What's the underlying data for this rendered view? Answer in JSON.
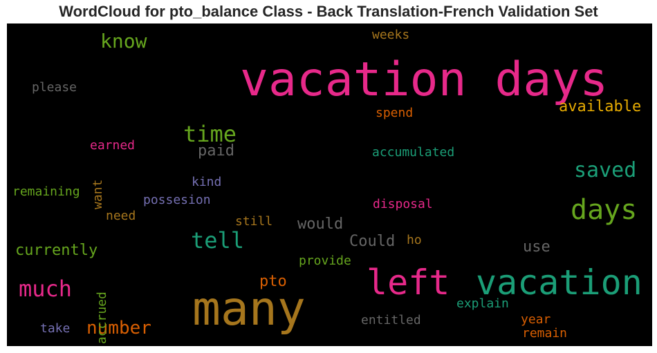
{
  "chart_data": {
    "type": "wordcloud",
    "title": "WordCloud for pto_balance Class - Back Translation-French Validation Set",
    "background": "#000000",
    "words": [
      {
        "text": "vacation days",
        "color": "#e7298a"
      },
      {
        "text": "many",
        "color": "#a6761d"
      },
      {
        "text": "left",
        "color": "#e7298a"
      },
      {
        "text": "vacation",
        "color": "#1b9e77"
      },
      {
        "text": "days",
        "color": "#66a61e"
      },
      {
        "text": "saved",
        "color": "#1b9e77"
      },
      {
        "text": "time",
        "color": "#66a61e"
      },
      {
        "text": "tell",
        "color": "#1b9e77"
      },
      {
        "text": "much",
        "color": "#e7298a"
      },
      {
        "text": "know",
        "color": "#66a61e"
      },
      {
        "text": "number",
        "color": "#d95f02"
      },
      {
        "text": "available",
        "color": "#e6ab02"
      },
      {
        "text": "paid",
        "color": "#666666"
      },
      {
        "text": "currently",
        "color": "#66a61e"
      },
      {
        "text": "would",
        "color": "#666666"
      },
      {
        "text": "Could",
        "color": "#666666"
      },
      {
        "text": "use",
        "color": "#666666"
      },
      {
        "text": "pto",
        "color": "#d95f02"
      },
      {
        "text": "accumulated",
        "color": "#1b9e77"
      },
      {
        "text": "please",
        "color": "#666666"
      },
      {
        "text": "weeks",
        "color": "#a6761d"
      },
      {
        "text": "spend",
        "color": "#d95f02"
      },
      {
        "text": "earned",
        "color": "#e7298a"
      },
      {
        "text": "want",
        "color": "#a6761d"
      },
      {
        "text": "remaining",
        "color": "#66a61e"
      },
      {
        "text": "kind",
        "color": "#7570b3"
      },
      {
        "text": "possesion",
        "color": "#7570b3"
      },
      {
        "text": "disposal",
        "color": "#e7298a"
      },
      {
        "text": "need",
        "color": "#a6761d"
      },
      {
        "text": "still",
        "color": "#a6761d"
      },
      {
        "text": "ho",
        "color": "#a6761d"
      },
      {
        "text": "provide",
        "color": "#66a61e"
      },
      {
        "text": "accrued",
        "color": "#66a61e"
      },
      {
        "text": "explain",
        "color": "#1b9e77"
      },
      {
        "text": "take",
        "color": "#7570b3"
      },
      {
        "text": "entitled",
        "color": "#666666"
      },
      {
        "text": "year",
        "color": "#d95f02"
      },
      {
        "text": "remain",
        "color": "#d95f02"
      }
    ]
  }
}
